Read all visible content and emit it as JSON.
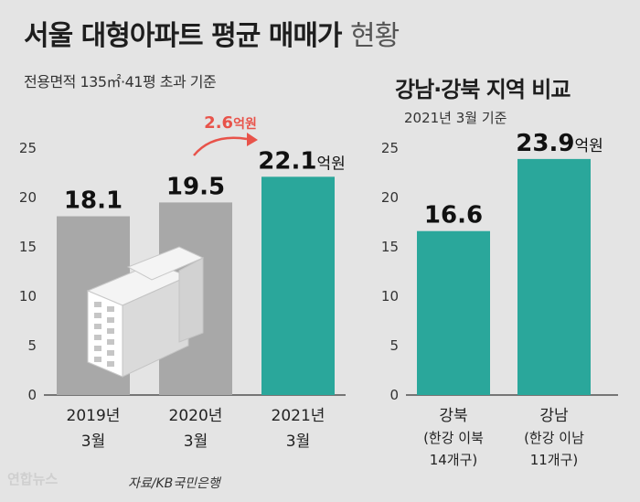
{
  "title": {
    "main": "서울 대형아파트 평균 매매가",
    "suffix": "현황"
  },
  "subtitle": "전용면적 135㎡·41평 초과 기준",
  "source": "자료/KB국민은행",
  "logo": "연합뉴스",
  "colors": {
    "gray_bar": "#a8a8a8",
    "teal_bar": "#2aa79b",
    "annotation": "#e8534a",
    "background": "#e4e4e4"
  },
  "chart_data": [
    {
      "type": "bar",
      "categories": [
        [
          "2019년",
          "3월"
        ],
        [
          "2020년",
          "3월"
        ],
        [
          "2021년",
          "3월"
        ]
      ],
      "values": [
        18.1,
        19.5,
        22.1
      ],
      "value_labels": [
        "18.1",
        "19.5",
        "22.1"
      ],
      "unit_label": "억원",
      "ylim": [
        0,
        25
      ],
      "yticks": [
        0,
        5,
        10,
        15,
        20,
        25
      ],
      "bar_colors": [
        "#a8a8a8",
        "#a8a8a8",
        "#2aa79b"
      ],
      "annotation": {
        "value": "2.6",
        "unit": "억원"
      }
    },
    {
      "type": "bar",
      "title": "강남·강북 지역 비교",
      "subtitle": "2021년 3월 기준",
      "categories": [
        [
          "강북",
          "(한강 이북",
          "14개구)"
        ],
        [
          "강남",
          "(한강 이남",
          "11개구)"
        ]
      ],
      "values": [
        16.6,
        23.9
      ],
      "value_labels": [
        "16.6",
        "23.9"
      ],
      "unit_label": "억원",
      "ylim": [
        0,
        25
      ],
      "yticks": [
        0,
        5,
        10,
        15,
        20,
        25
      ],
      "bar_colors": [
        "#2aa79b",
        "#2aa79b"
      ]
    }
  ]
}
